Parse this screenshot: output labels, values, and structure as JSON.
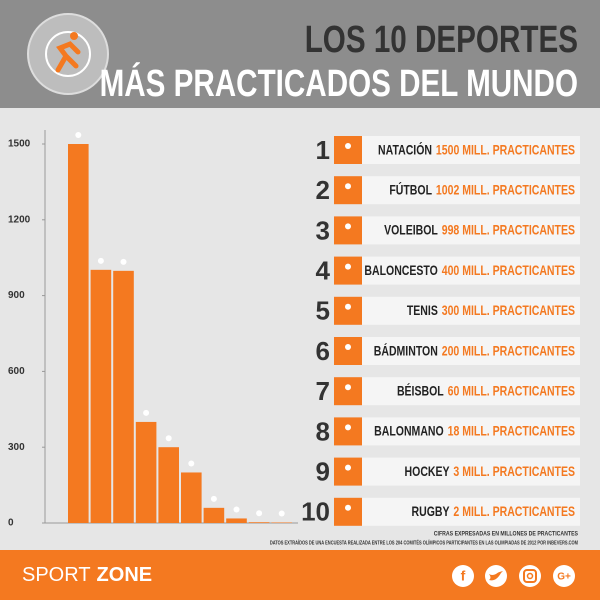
{
  "chart_data": {
    "type": "bar",
    "title": "LOS 10 DEPORTES",
    "subtitle": "MÁS PRACTICADOS DEL MUNDO",
    "ranks": [
      1,
      2,
      3,
      4,
      5,
      6,
      7,
      8,
      9,
      10
    ],
    "categories": [
      "NATACIÓN",
      "FÚTBOL",
      "VOLEIBOL",
      "BALONCESTO",
      "TENIS",
      "BÁDMINTON",
      "BÉISBOL",
      "BALONMANO",
      "HOCKEY",
      "RUGBY"
    ],
    "values": [
      1500,
      1002,
      998,
      400,
      300,
      200,
      60,
      18,
      3,
      2
    ],
    "value_labels": [
      "1500 MILL. PRACTICANTES",
      "1002 MILL. PRACTICANTES",
      "998 MILL. PRACTICANTES",
      "400 MILL. PRACTICANTES",
      "300 MILL. PRACTICANTES",
      "200 MILL. PRACTICANTES",
      "60 MILL. PRACTICANTES",
      "18 MILL. PRACTICANTES",
      "3 MILL. PRACTICANTES",
      "2 MILL. PRACTICANTES"
    ],
    "color": "#f47920",
    "ylim": [
      0,
      1500
    ],
    "yticks": [
      0,
      300,
      600,
      900,
      1200,
      1500
    ],
    "notes": [
      "CIFRAS EXPRESADAS EN MILLONES DE PRACTICANTES",
      "DATOS EXTRAÍDOS DE UNA ENCUESTA REALIZADA ENTRE LOS 204 COMITÉS OLÍMPICOS PARTICIPANTES EN LAS OLIMPIADAS DE 2012 POR INBEVERS.COM"
    ]
  },
  "footer": {
    "brand": [
      "SPORT",
      "ZONE"
    ],
    "social": [
      "f",
      "G+"
    ]
  }
}
